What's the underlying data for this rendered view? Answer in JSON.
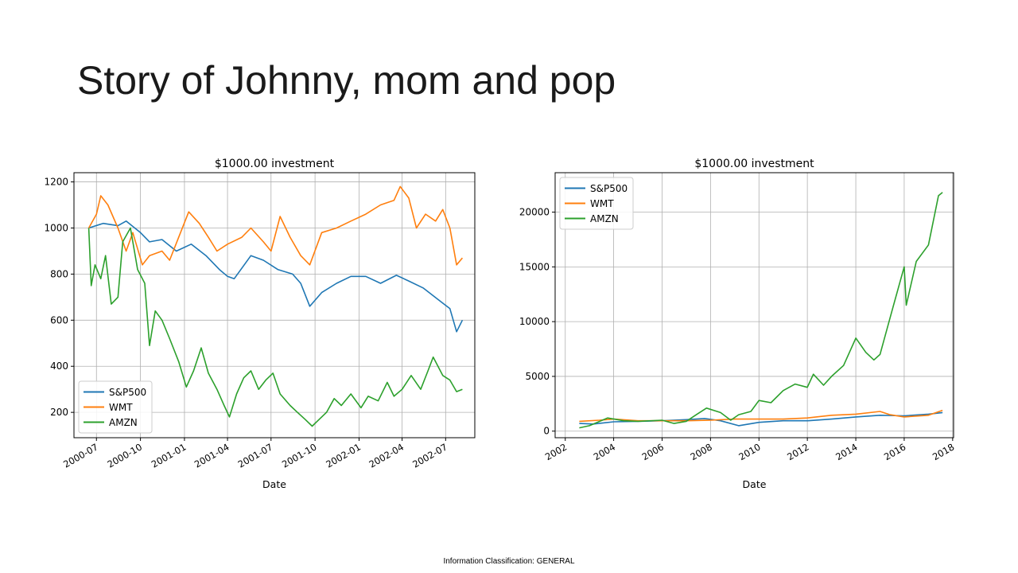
{
  "slide": {
    "title": "Story of Johnny, mom and pop",
    "footer": "Information Classification: GENERAL"
  },
  "chart_data": [
    {
      "type": "line",
      "title": "$1000.00 investment",
      "xlabel": "Date",
      "ylabel": "",
      "x_ticks": [
        "2000-07",
        "2000-10",
        "2001-01",
        "2001-04",
        "2001-07",
        "2001-10",
        "2002-01",
        "2002-04",
        "2002-07"
      ],
      "y_ticks": [
        "200",
        "400",
        "600",
        "800",
        "1000",
        "1200"
      ],
      "xlim": [
        "2000-05-15",
        "2002-08-31"
      ],
      "ylim": [
        90,
        1240
      ],
      "grid": true,
      "legend": "lower-left",
      "series": [
        {
          "name": "S&P500",
          "color": "#1f77b4",
          "points": [
            [
              "2000-06-15",
              1000
            ],
            [
              "2000-07-15",
              1020
            ],
            [
              "2000-08-15",
              1010
            ],
            [
              "2000-09-01",
              1030
            ],
            [
              "2000-10-01",
              980
            ],
            [
              "2000-10-20",
              940
            ],
            [
              "2000-11-15",
              950
            ],
            [
              "2000-12-15",
              900
            ],
            [
              "2001-01-15",
              930
            ],
            [
              "2001-02-15",
              880
            ],
            [
              "2001-03-15",
              820
            ],
            [
              "2001-04-01",
              790
            ],
            [
              "2001-04-15",
              780
            ],
            [
              "2001-05-20",
              880
            ],
            [
              "2001-06-15",
              860
            ],
            [
              "2001-07-15",
              820
            ],
            [
              "2001-08-15",
              800
            ],
            [
              "2001-09-01",
              760
            ],
            [
              "2001-09-20",
              660
            ],
            [
              "2001-10-15",
              720
            ],
            [
              "2001-11-15",
              760
            ],
            [
              "2001-12-15",
              790
            ],
            [
              "2002-01-15",
              790
            ],
            [
              "2002-02-15",
              760
            ],
            [
              "2002-03-20",
              795
            ],
            [
              "2002-04-15",
              770
            ],
            [
              "2002-05-15",
              740
            ],
            [
              "2002-06-15",
              690
            ],
            [
              "2002-07-10",
              650
            ],
            [
              "2002-07-24",
              550
            ],
            [
              "2002-08-05",
              600
            ]
          ]
        },
        {
          "name": "WMT",
          "color": "#ff7f0e",
          "points": [
            [
              "2000-06-15",
              1000
            ],
            [
              "2000-07-01",
              1060
            ],
            [
              "2000-07-10",
              1140
            ],
            [
              "2000-07-25",
              1100
            ],
            [
              "2000-08-15",
              1000
            ],
            [
              "2000-09-01",
              900
            ],
            [
              "2000-09-15",
              980
            ],
            [
              "2000-10-05",
              840
            ],
            [
              "2000-10-20",
              880
            ],
            [
              "2000-11-15",
              900
            ],
            [
              "2000-12-01",
              860
            ],
            [
              "2000-12-20",
              960
            ],
            [
              "2001-01-10",
              1070
            ],
            [
              "2001-02-01",
              1020
            ],
            [
              "2001-02-20",
              960
            ],
            [
              "2001-03-10",
              900
            ],
            [
              "2001-04-01",
              930
            ],
            [
              "2001-05-01",
              960
            ],
            [
              "2001-05-20",
              1000
            ],
            [
              "2001-06-15",
              940
            ],
            [
              "2001-07-01",
              900
            ],
            [
              "2001-07-20",
              1050
            ],
            [
              "2001-08-10",
              960
            ],
            [
              "2001-09-01",
              880
            ],
            [
              "2001-09-20",
              840
            ],
            [
              "2001-10-15",
              980
            ],
            [
              "2001-11-15",
              1000
            ],
            [
              "2001-12-15",
              1030
            ],
            [
              "2002-01-15",
              1060
            ],
            [
              "2002-02-15",
              1100
            ],
            [
              "2002-03-15",
              1120
            ],
            [
              "2002-03-28",
              1180
            ],
            [
              "2002-04-15",
              1130
            ],
            [
              "2002-05-01",
              1000
            ],
            [
              "2002-05-20",
              1060
            ],
            [
              "2002-06-10",
              1030
            ],
            [
              "2002-06-25",
              1080
            ],
            [
              "2002-07-10",
              1000
            ],
            [
              "2002-07-24",
              840
            ],
            [
              "2002-08-05",
              870
            ]
          ]
        },
        {
          "name": "AMZN",
          "color": "#2ca02c",
          "points": [
            [
              "2000-06-15",
              1000
            ],
            [
              "2000-06-20",
              750
            ],
            [
              "2000-06-28",
              840
            ],
            [
              "2000-07-10",
              780
            ],
            [
              "2000-07-20",
              880
            ],
            [
              "2000-08-01",
              670
            ],
            [
              "2000-08-15",
              700
            ],
            [
              "2000-08-25",
              940
            ],
            [
              "2000-09-10",
              1000
            ],
            [
              "2000-09-25",
              820
            ],
            [
              "2000-10-10",
              760
            ],
            [
              "2000-10-20",
              490
            ],
            [
              "2000-11-01",
              640
            ],
            [
              "2000-11-15",
              600
            ],
            [
              "2000-12-01",
              520
            ],
            [
              "2000-12-20",
              420
            ],
            [
              "2001-01-05",
              310
            ],
            [
              "2001-01-20",
              380
            ],
            [
              "2001-02-05",
              480
            ],
            [
              "2001-02-20",
              370
            ],
            [
              "2001-03-10",
              300
            ],
            [
              "2001-03-25",
              230
            ],
            [
              "2001-04-05",
              180
            ],
            [
              "2001-04-20",
              280
            ],
            [
              "2001-05-05",
              350
            ],
            [
              "2001-05-20",
              380
            ],
            [
              "2001-06-05",
              300
            ],
            [
              "2001-06-20",
              340
            ],
            [
              "2001-07-05",
              370
            ],
            [
              "2001-07-20",
              280
            ],
            [
              "2001-08-10",
              230
            ],
            [
              "2001-08-25",
              200
            ],
            [
              "2001-09-10",
              170
            ],
            [
              "2001-09-25",
              140
            ],
            [
              "2001-10-10",
              170
            ],
            [
              "2001-10-25",
              200
            ],
            [
              "2001-11-10",
              260
            ],
            [
              "2001-11-25",
              230
            ],
            [
              "2001-12-15",
              280
            ],
            [
              "2002-01-05",
              220
            ],
            [
              "2002-01-20",
              270
            ],
            [
              "2002-02-10",
              250
            ],
            [
              "2002-03-01",
              330
            ],
            [
              "2002-03-15",
              270
            ],
            [
              "2002-04-01",
              300
            ],
            [
              "2002-04-20",
              360
            ],
            [
              "2002-05-10",
              300
            ],
            [
              "2002-05-25",
              380
            ],
            [
              "2002-06-05",
              440
            ],
            [
              "2002-06-25",
              360
            ],
            [
              "2002-07-10",
              340
            ],
            [
              "2002-07-24",
              290
            ],
            [
              "2002-08-05",
              300
            ]
          ]
        }
      ]
    },
    {
      "type": "line",
      "title": "$1000.00 investment",
      "xlabel": "Date",
      "ylabel": "",
      "x_ticks": [
        "2002",
        "2004",
        "2006",
        "2008",
        "2010",
        "2012",
        "2014",
        "2016",
        "2018"
      ],
      "y_ticks": [
        "0",
        "5000",
        "10000",
        "15000",
        "20000"
      ],
      "xlim": [
        "2001-08-01",
        "2018-01-15"
      ],
      "ylim": [
        -600,
        23600
      ],
      "grid": true,
      "legend": "upper-left",
      "series": [
        {
          "name": "S&P500",
          "color": "#1f77b4",
          "points": [
            [
              "2002-08-01",
              700
            ],
            [
              "2003-03-01",
              650
            ],
            [
              "2004-01-01",
              850
            ],
            [
              "2005-01-01",
              900
            ],
            [
              "2006-01-01",
              950
            ],
            [
              "2007-01-01",
              1050
            ],
            [
              "2007-10-01",
              1150
            ],
            [
              "2008-06-01",
              950
            ],
            [
              "2009-03-01",
              500
            ],
            [
              "2010-01-01",
              800
            ],
            [
              "2011-01-01",
              950
            ],
            [
              "2012-01-01",
              950
            ],
            [
              "2013-01-01",
              1100
            ],
            [
              "2014-01-01",
              1300
            ],
            [
              "2015-01-01",
              1450
            ],
            [
              "2016-01-01",
              1400
            ],
            [
              "2017-01-01",
              1550
            ],
            [
              "2017-08-01",
              1700
            ]
          ]
        },
        {
          "name": "WMT",
          "color": "#ff7f0e",
          "points": [
            [
              "2002-08-01",
              900
            ],
            [
              "2003-06-01",
              1000
            ],
            [
              "2004-01-01",
              1100
            ],
            [
              "2005-01-01",
              950
            ],
            [
              "2006-01-01",
              950
            ],
            [
              "2007-01-01",
              950
            ],
            [
              "2008-01-01",
              1000
            ],
            [
              "2009-01-01",
              1100
            ],
            [
              "2010-01-01",
              1100
            ],
            [
              "2011-01-01",
              1100
            ],
            [
              "2012-01-01",
              1200
            ],
            [
              "2013-01-01",
              1450
            ],
            [
              "2014-01-01",
              1550
            ],
            [
              "2015-01-01",
              1800
            ],
            [
              "2015-06-01",
              1500
            ],
            [
              "2016-01-01",
              1300
            ],
            [
              "2017-01-01",
              1450
            ],
            [
              "2017-08-01",
              1900
            ]
          ]
        },
        {
          "name": "AMZN",
          "color": "#2ca02c",
          "points": [
            [
              "2002-08-01",
              300
            ],
            [
              "2003-01-01",
              500
            ],
            [
              "2003-10-01",
              1200
            ],
            [
              "2004-06-01",
              950
            ],
            [
              "2005-01-01",
              900
            ],
            [
              "2006-01-01",
              1000
            ],
            [
              "2006-07-01",
              700
            ],
            [
              "2007-01-01",
              900
            ],
            [
              "2007-06-01",
              1500
            ],
            [
              "2007-11-01",
              2100
            ],
            [
              "2008-06-01",
              1700
            ],
            [
              "2008-11-01",
              1000
            ],
            [
              "2009-03-01",
              1500
            ],
            [
              "2009-09-01",
              1800
            ],
            [
              "2010-01-01",
              2800
            ],
            [
              "2010-07-01",
              2600
            ],
            [
              "2011-01-01",
              3700
            ],
            [
              "2011-07-01",
              4300
            ],
            [
              "2012-01-01",
              4000
            ],
            [
              "2012-04-01",
              5200
            ],
            [
              "2012-09-01",
              4200
            ],
            [
              "2013-01-01",
              5000
            ],
            [
              "2013-07-01",
              6000
            ],
            [
              "2014-01-01",
              8500
            ],
            [
              "2014-06-01",
              7200
            ],
            [
              "2014-10-01",
              6500
            ],
            [
              "2015-01-01",
              7000
            ],
            [
              "2015-07-01",
              11000
            ],
            [
              "2016-01-01",
              15000
            ],
            [
              "2016-02-01",
              11500
            ],
            [
              "2016-07-01",
              15500
            ],
            [
              "2017-01-01",
              17000
            ],
            [
              "2017-06-01",
              21500
            ],
            [
              "2017-08-01",
              21800
            ]
          ]
        }
      ]
    }
  ]
}
